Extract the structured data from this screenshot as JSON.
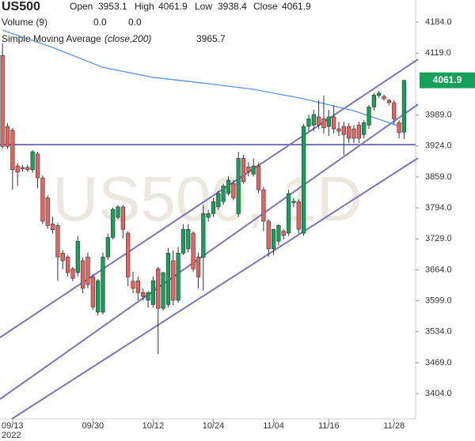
{
  "chart_data": {
    "type": "candlestick",
    "title": "US500",
    "watermark": "US500, 1D",
    "ohlc_legend": {
      "labels": [
        "Open",
        "High",
        "Low",
        "Close"
      ],
      "values": [
        3953.1,
        4061.9,
        3938.4,
        4061.9
      ],
      "color": "#1a9850"
    },
    "volume": {
      "name": "Volume (9)",
      "values": [
        0,
        0
      ],
      "value_labels": [
        "0.0",
        "0.0"
      ],
      "colors": [
        "#e05555",
        "#3d7fd6"
      ]
    },
    "sma": {
      "name": "Simple Moving Average",
      "params": "(close,200)",
      "color": "#5b95e0",
      "last": 3965.7,
      "x": [
        0,
        10,
        20,
        30,
        40,
        50,
        60,
        70,
        79
      ],
      "values": [
        4167,
        4131,
        4089,
        4068,
        4056,
        4043,
        4023,
        3998,
        3965.7
      ]
    },
    "last_price": 4061.9,
    "up_color": "#17a05a",
    "down_color": "#e8625f",
    "candles": [
      [
        4114,
        4139,
        3918,
        3923
      ],
      [
        3965,
        3972,
        3918,
        3923
      ],
      [
        3957,
        3962,
        3832,
        3874
      ],
      [
        3882,
        3888,
        3840,
        3869
      ],
      [
        3879,
        3884,
        3870,
        3876
      ],
      [
        3879,
        3885,
        3870,
        3874
      ],
      [
        3874,
        3915,
        3868,
        3912
      ],
      [
        3907,
        3912,
        3835,
        3857
      ],
      [
        3857,
        3862,
        3760,
        3766
      ],
      [
        3815,
        3820,
        3750,
        3757
      ],
      [
        3760,
        3775,
        3740,
        3748
      ],
      [
        3757,
        3762,
        3641,
        3691
      ],
      [
        3699,
        3705,
        3665,
        3683
      ],
      [
        3691,
        3695,
        3650,
        3658
      ],
      [
        3666,
        3670,
        3640,
        3646
      ],
      [
        3658,
        3735,
        3650,
        3724
      ],
      [
        3683,
        3690,
        3615,
        3625
      ],
      [
        3691,
        3700,
        3625,
        3633
      ],
      [
        3649,
        3655,
        3580,
        3586
      ],
      [
        3575,
        3645,
        3568,
        3641
      ],
      [
        3575,
        3700,
        3570,
        3691
      ],
      [
        3691,
        3740,
        3685,
        3732
      ],
      [
        3732,
        3795,
        3728,
        3791
      ],
      [
        3774,
        3800,
        3770,
        3796
      ],
      [
        3796,
        3800,
        3730,
        3749
      ],
      [
        3741,
        3745,
        3630,
        3649
      ],
      [
        3640,
        3660,
        3615,
        3625
      ],
      [
        3641,
        3650,
        3600,
        3616
      ],
      [
        3616,
        3625,
        3600,
        3608
      ],
      [
        3600,
        3620,
        3585,
        3616
      ],
      [
        3591,
        3650,
        3585,
        3641
      ],
      [
        3666,
        3670,
        3487,
        3583
      ],
      [
        3583,
        3660,
        3578,
        3658
      ],
      [
        3591,
        3710,
        3585,
        3699
      ],
      [
        3683,
        3705,
        3590,
        3600
      ],
      [
        3600,
        3712,
        3595,
        3699
      ],
      [
        3699,
        3760,
        3695,
        3749
      ],
      [
        3708,
        3760,
        3700,
        3749
      ],
      [
        3741,
        3745,
        3660,
        3666
      ],
      [
        3691,
        3700,
        3625,
        3649
      ],
      [
        3690,
        3800,
        3620,
        3782
      ],
      [
        3774,
        3790,
        3765,
        3782
      ],
      [
        3782,
        3815,
        3775,
        3807
      ],
      [
        3796,
        3830,
        3790,
        3824
      ],
      [
        3807,
        3845,
        3800,
        3840
      ],
      [
        3824,
        3860,
        3820,
        3852
      ],
      [
        3845,
        3852,
        3810,
        3815
      ],
      [
        3782,
        3912,
        3775,
        3898
      ],
      [
        3898,
        3905,
        3845,
        3849
      ],
      [
        3880,
        3890,
        3860,
        3870
      ],
      [
        3865,
        3898,
        3860,
        3882
      ],
      [
        3882,
        3888,
        3825,
        3832
      ],
      [
        3832,
        3838,
        3745,
        3766
      ],
      [
        3766,
        3770,
        3691,
        3708
      ],
      [
        3708,
        3750,
        3695,
        3749
      ],
      [
        3724,
        3760,
        3715,
        3757
      ],
      [
        3745,
        3750,
        3728,
        3736
      ],
      [
        3741,
        3832,
        3735,
        3824
      ],
      [
        3805,
        3815,
        3795,
        3808
      ],
      [
        3807,
        3812,
        3740,
        3749
      ],
      [
        3741,
        3970,
        3735,
        3965
      ],
      [
        3965,
        3990,
        3955,
        3981
      ],
      [
        3968,
        4000,
        3955,
        3990
      ],
      [
        3985,
        4020,
        3960,
        3968
      ],
      [
        3981,
        4030,
        3950,
        3962
      ],
      [
        3965,
        4000,
        3945,
        3985
      ],
      [
        3985,
        4010,
        3950,
        3960
      ],
      [
        3960,
        3975,
        3945,
        3955
      ],
      [
        3965,
        3975,
        3905,
        3948
      ],
      [
        3965,
        3972,
        3930,
        3940
      ],
      [
        3960,
        3968,
        3930,
        3940
      ],
      [
        3968,
        3975,
        3930,
        3940
      ],
      [
        3948,
        3978,
        3940,
        3973
      ],
      [
        3968,
        4010,
        3960,
        4006
      ],
      [
        4006,
        4035,
        3998,
        4031
      ],
      [
        4030,
        4040,
        4025,
        4035
      ],
      [
        4028,
        4032,
        4020,
        4023
      ],
      [
        4020,
        4022,
        4010,
        4015
      ],
      [
        4015,
        4020,
        3970,
        3981
      ],
      [
        3973,
        3978,
        3940,
        3952
      ],
      [
        3953.1,
        4061.9,
        3938.4,
        4061.9
      ]
    ],
    "xlim": [
      -0.5,
      82.3
    ],
    "ylim": [
      3351,
      4230.5
    ],
    "xticks": [
      {
        "value": 2,
        "label": "09/13"
      },
      {
        "value": 18,
        "label": "09/30"
      },
      {
        "value": 30,
        "label": "10/12"
      },
      {
        "value": 42,
        "label": "10/24"
      },
      {
        "value": 54,
        "label": "11/04"
      },
      {
        "value": 65,
        "label": "11/16"
      },
      {
        "value": 78,
        "label": "11/28"
      }
    ],
    "year_label": "2022",
    "yticks": [
      {
        "value": 4184,
        "label": "4184.0"
      },
      {
        "value": 4119,
        "label": "4119.0"
      },
      {
        "value": 3989,
        "label": "3989.0"
      },
      {
        "value": 3924,
        "label": "3924.0"
      },
      {
        "value": 3859,
        "label": "3859.0"
      },
      {
        "value": 3794,
        "label": "3794.0"
      },
      {
        "value": 3729,
        "label": "3729.0"
      },
      {
        "value": 3664,
        "label": "3664.0"
      },
      {
        "value": 3599,
        "label": "3599.0"
      },
      {
        "value": 3534,
        "label": "3534.0"
      },
      {
        "value": 3469,
        "label": "3469.0"
      },
      {
        "value": 3404,
        "label": "3404.0"
      }
    ],
    "grid": false
  }
}
